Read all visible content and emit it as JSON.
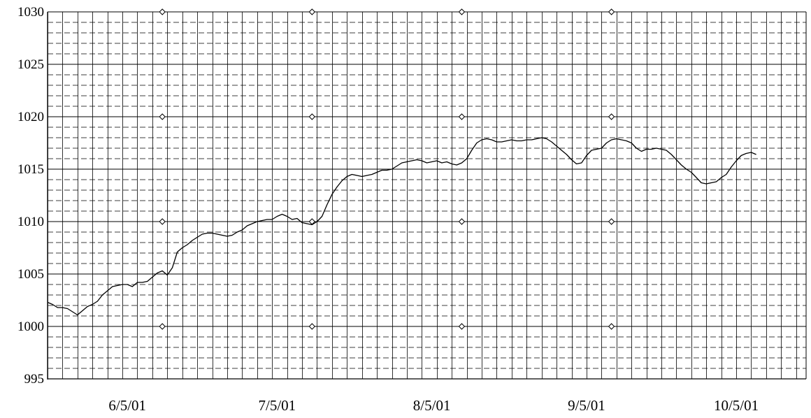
{
  "chart_data": {
    "type": "line",
    "title": "",
    "xlabel": "",
    "ylabel": "",
    "ylim": [
      995,
      1030
    ],
    "y_ticks": [
      "995",
      "1000",
      "1005",
      "1010",
      "1015",
      "1020",
      "1025",
      "1030"
    ],
    "y_tick_values": [
      995,
      1000,
      1005,
      1010,
      1015,
      1020,
      1025,
      1030
    ],
    "x_tick_labels": [
      "6/5/01",
      "7/5/01",
      "8/5/01",
      "9/5/01",
      "10/5/01"
    ],
    "x_tick_dates": [
      "2001-06-05",
      "2001-07-05",
      "2001-08-05",
      "2001-09-05",
      "2001-10-05"
    ],
    "xlim": [
      "2001-05-20",
      "2001-10-19"
    ],
    "grid": true,
    "line_color": "#000000",
    "series": [
      {
        "values": [
          [
            "2001-05-20",
            1002.3
          ],
          [
            "2001-05-21",
            1002.1
          ],
          [
            "2001-05-22",
            1001.8
          ],
          [
            "2001-05-23",
            1001.8
          ],
          [
            "2001-05-24",
            1001.7
          ],
          [
            "2001-05-25",
            1001.4
          ],
          [
            "2001-05-26",
            1001.1
          ],
          [
            "2001-05-27",
            1001.5
          ],
          [
            "2001-05-28",
            1001.9
          ],
          [
            "2001-05-29",
            1002.1
          ],
          [
            "2001-05-30",
            1002.4
          ],
          [
            "2001-05-31",
            1003.0
          ],
          [
            "2001-06-01",
            1003.4
          ],
          [
            "2001-06-02",
            1003.8
          ],
          [
            "2001-06-03",
            1003.9
          ],
          [
            "2001-06-04",
            1004.0
          ],
          [
            "2001-06-05",
            1004.0
          ],
          [
            "2001-06-06",
            1003.8
          ],
          [
            "2001-06-07",
            1004.2
          ],
          [
            "2001-06-08",
            1004.2
          ],
          [
            "2001-06-09",
            1004.3
          ],
          [
            "2001-06-10",
            1004.7
          ],
          [
            "2001-06-11",
            1005.1
          ],
          [
            "2001-06-12",
            1005.3
          ],
          [
            "2001-06-13",
            1004.9
          ],
          [
            "2001-06-14",
            1005.6
          ],
          [
            "2001-06-15",
            1007.1
          ],
          [
            "2001-06-16",
            1007.5
          ],
          [
            "2001-06-17",
            1007.8
          ],
          [
            "2001-06-18",
            1008.2
          ],
          [
            "2001-06-19",
            1008.5
          ],
          [
            "2001-06-20",
            1008.8
          ],
          [
            "2001-06-21",
            1008.9
          ],
          [
            "2001-06-22",
            1008.9
          ],
          [
            "2001-06-23",
            1008.8
          ],
          [
            "2001-06-24",
            1008.7
          ],
          [
            "2001-06-25",
            1008.6
          ],
          [
            "2001-06-26",
            1008.7
          ],
          [
            "2001-06-27",
            1009.0
          ],
          [
            "2001-06-28",
            1009.2
          ],
          [
            "2001-06-29",
            1009.6
          ],
          [
            "2001-06-30",
            1009.8
          ],
          [
            "2001-07-01",
            1010.0
          ],
          [
            "2001-07-02",
            1010.1
          ],
          [
            "2001-07-03",
            1010.2
          ],
          [
            "2001-07-04",
            1010.2
          ],
          [
            "2001-07-05",
            1010.5
          ],
          [
            "2001-07-06",
            1010.7
          ],
          [
            "2001-07-07",
            1010.5
          ],
          [
            "2001-07-08",
            1010.2
          ],
          [
            "2001-07-09",
            1010.3
          ],
          [
            "2001-07-10",
            1009.9
          ],
          [
            "2001-07-11",
            1009.8
          ],
          [
            "2001-07-12",
            1009.7
          ],
          [
            "2001-07-13",
            1010.0
          ],
          [
            "2001-07-14",
            1010.5
          ],
          [
            "2001-07-15",
            1011.6
          ],
          [
            "2001-07-16",
            1012.6
          ],
          [
            "2001-07-17",
            1013.3
          ],
          [
            "2001-07-18",
            1013.9
          ],
          [
            "2001-07-19",
            1014.3
          ],
          [
            "2001-07-20",
            1014.5
          ],
          [
            "2001-07-21",
            1014.4
          ],
          [
            "2001-07-22",
            1014.3
          ],
          [
            "2001-07-23",
            1014.4
          ],
          [
            "2001-07-24",
            1014.5
          ],
          [
            "2001-07-25",
            1014.7
          ],
          [
            "2001-07-26",
            1014.9
          ],
          [
            "2001-07-27",
            1014.9
          ],
          [
            "2001-07-28",
            1015.0
          ],
          [
            "2001-07-29",
            1015.3
          ],
          [
            "2001-07-30",
            1015.6
          ],
          [
            "2001-07-31",
            1015.7
          ],
          [
            "2001-08-01",
            1015.8
          ],
          [
            "2001-08-02",
            1015.9
          ],
          [
            "2001-08-03",
            1015.8
          ],
          [
            "2001-08-04",
            1015.6
          ],
          [
            "2001-08-05",
            1015.7
          ],
          [
            "2001-08-06",
            1015.8
          ],
          [
            "2001-08-07",
            1015.6
          ],
          [
            "2001-08-08",
            1015.7
          ],
          [
            "2001-08-09",
            1015.5
          ],
          [
            "2001-08-10",
            1015.4
          ],
          [
            "2001-08-11",
            1015.6
          ],
          [
            "2001-08-12",
            1016.0
          ],
          [
            "2001-08-13",
            1016.8
          ],
          [
            "2001-08-14",
            1017.5
          ],
          [
            "2001-08-15",
            1017.8
          ],
          [
            "2001-08-16",
            1017.9
          ],
          [
            "2001-08-17",
            1017.8
          ],
          [
            "2001-08-18",
            1017.6
          ],
          [
            "2001-08-19",
            1017.6
          ],
          [
            "2001-08-20",
            1017.7
          ],
          [
            "2001-08-21",
            1017.8
          ],
          [
            "2001-08-22",
            1017.7
          ],
          [
            "2001-08-23",
            1017.7
          ],
          [
            "2001-08-24",
            1017.8
          ],
          [
            "2001-08-25",
            1017.8
          ],
          [
            "2001-08-26",
            1017.9
          ],
          [
            "2001-08-27",
            1018.0
          ],
          [
            "2001-08-28",
            1017.9
          ],
          [
            "2001-08-29",
            1017.6
          ],
          [
            "2001-08-30",
            1017.2
          ],
          [
            "2001-08-31",
            1016.8
          ],
          [
            "2001-09-01",
            1016.4
          ],
          [
            "2001-09-02",
            1015.9
          ],
          [
            "2001-09-03",
            1015.5
          ],
          [
            "2001-09-04",
            1015.6
          ],
          [
            "2001-09-05",
            1016.3
          ],
          [
            "2001-09-06",
            1016.8
          ],
          [
            "2001-09-07",
            1016.9
          ],
          [
            "2001-09-08",
            1017.0
          ],
          [
            "2001-09-09",
            1017.5
          ],
          [
            "2001-09-10",
            1017.8
          ],
          [
            "2001-09-11",
            1017.9
          ],
          [
            "2001-09-12",
            1017.8
          ],
          [
            "2001-09-13",
            1017.7
          ],
          [
            "2001-09-14",
            1017.5
          ],
          [
            "2001-09-15",
            1017.0
          ],
          [
            "2001-09-16",
            1016.7
          ],
          [
            "2001-09-17",
            1016.9
          ],
          [
            "2001-09-18",
            1016.9
          ],
          [
            "2001-09-19",
            1017.0
          ],
          [
            "2001-09-20",
            1016.9
          ],
          [
            "2001-09-21",
            1016.8
          ],
          [
            "2001-09-22",
            1016.4
          ],
          [
            "2001-09-23",
            1015.9
          ],
          [
            "2001-09-24",
            1015.4
          ],
          [
            "2001-09-25",
            1015.0
          ],
          [
            "2001-09-26",
            1014.7
          ],
          [
            "2001-09-27",
            1014.2
          ],
          [
            "2001-09-28",
            1013.7
          ],
          [
            "2001-09-29",
            1013.6
          ],
          [
            "2001-09-30",
            1013.7
          ],
          [
            "2001-10-01",
            1013.8
          ],
          [
            "2001-10-02",
            1014.2
          ],
          [
            "2001-10-03",
            1014.5
          ],
          [
            "2001-10-04",
            1015.2
          ],
          [
            "2001-10-05",
            1015.8
          ],
          [
            "2001-10-06",
            1016.3
          ],
          [
            "2001-10-07",
            1016.5
          ],
          [
            "2001-10-08",
            1016.6
          ],
          [
            "2001-10-09",
            1016.4
          ]
        ]
      }
    ],
    "markers": {
      "shape": "diamond",
      "x": [
        "2001-06-12",
        "2001-07-12",
        "2001-08-11",
        "2001-09-10"
      ],
      "y": [
        1000,
        1010,
        1020,
        1030
      ]
    }
  }
}
